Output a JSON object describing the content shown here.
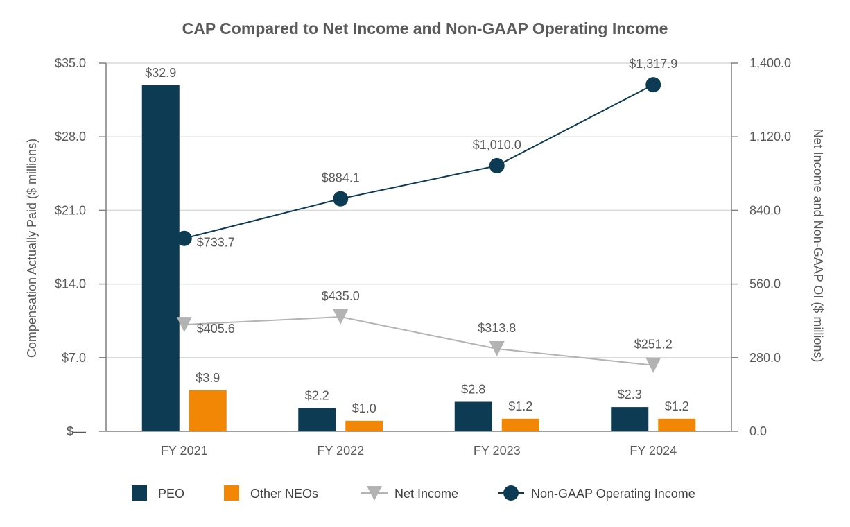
{
  "chart_data": {
    "type": "bar",
    "title": "CAP Compared to Net Income and Non-GAAP Operating Income",
    "categories": [
      "FY 2021",
      "FY 2022",
      "FY 2023",
      "FY 2024"
    ],
    "y_left": {
      "label": "Compensation Actually Paid ($ millions)",
      "range": [
        0,
        35
      ],
      "ticks": [
        0,
        7,
        14,
        21,
        28,
        35
      ],
      "tick_labels": [
        "$—",
        "$7.0",
        "$14.0",
        "$21.0",
        "$28.0",
        "$35.0"
      ]
    },
    "y_right": {
      "label": "Net Income and Non-GAAP OI ($ millions)",
      "range": [
        0,
        1400
      ],
      "ticks": [
        0,
        280,
        560,
        840,
        1120,
        1400
      ],
      "tick_labels": [
        "0.0",
        "280.0",
        "560.0",
        "840.0",
        "1,120.0",
        "1,400.0"
      ]
    },
    "series": [
      {
        "name": "PEO",
        "type": "bar",
        "axis": "left",
        "color": "#0d3b54",
        "values": [
          32.9,
          2.2,
          2.8,
          2.3
        ],
        "labels": [
          "$32.9",
          "$2.2",
          "$2.8",
          "$2.3"
        ]
      },
      {
        "name": "Other NEOs",
        "type": "bar",
        "axis": "left",
        "color": "#f28705",
        "values": [
          3.9,
          1.0,
          1.2,
          1.2
        ],
        "labels": [
          "$3.9",
          "$1.0",
          "$1.2",
          "$1.2"
        ]
      },
      {
        "name": "Net Income",
        "type": "line",
        "marker": "triangle-down",
        "axis": "right",
        "color": "#b3b3b3",
        "values": [
          405.6,
          435.0,
          313.8,
          251.2
        ],
        "labels": [
          "$405.6",
          "$435.0",
          "$313.8",
          "$251.2"
        ]
      },
      {
        "name": "Non-GAAP Operating Income",
        "type": "line",
        "marker": "circle",
        "axis": "right",
        "color": "#0d3b54",
        "values": [
          733.7,
          884.1,
          1010.0,
          1317.9
        ],
        "labels": [
          "$733.7",
          "$884.1",
          "$1,010.0",
          "$1,317.9"
        ]
      }
    ],
    "grid": true,
    "legend_position": "bottom"
  }
}
